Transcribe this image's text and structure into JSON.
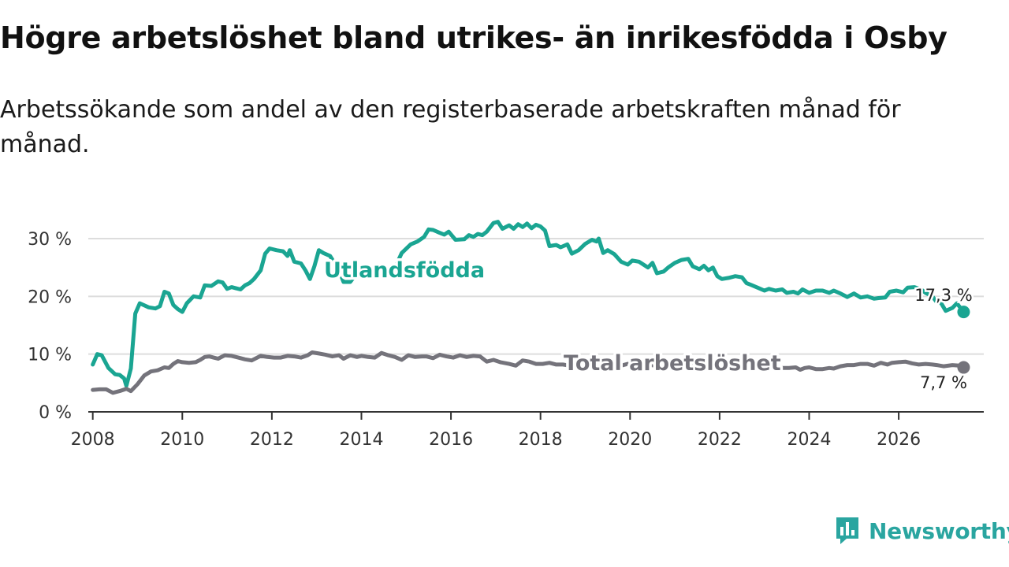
{
  "title": "Högre arbetslöshet bland utrikes- än inrikesfödda i Osby",
  "subtitle": "Arbetssökande som andel av den registerbaserade arbetskraften månad för månad.",
  "brand": "Newsworthy",
  "colors": {
    "foreign_born": "#1aa592",
    "total": "#74737b",
    "grid": "#dddddd",
    "axis": "#333333",
    "brand": "#2aa5a0"
  },
  "chart_data": {
    "type": "line",
    "title": "Högre arbetslöshet bland utrikes- än inrikesfödda i Osby",
    "xlabel": "",
    "ylabel": "",
    "xlim": [
      2007.9,
      2027.9
    ],
    "ylim": [
      0,
      30
    ],
    "x_ticks": [
      2008,
      2010,
      2012,
      2014,
      2016,
      2018,
      2020,
      2022,
      2024,
      2026
    ],
    "x_tick_labels": [
      "2008",
      "2010",
      "2012",
      "2014",
      "2016",
      "2018",
      "2020",
      "2022",
      "2024",
      "2026"
    ],
    "y_ticks": [
      0,
      10,
      20,
      30
    ],
    "y_tick_labels": [
      "0 %",
      "10 %",
      "20 %",
      "30 %"
    ],
    "grid": true,
    "series": [
      {
        "name": "Utlandsfödda",
        "label": "Utlandsfödda",
        "end_label": "17,3 %",
        "end_value": 17.3,
        "points": [
          [
            2008.0,
            8.2
          ],
          [
            2008.1,
            10.0
          ],
          [
            2008.2,
            9.8
          ],
          [
            2008.35,
            7.6
          ],
          [
            2008.5,
            6.5
          ],
          [
            2008.6,
            6.4
          ],
          [
            2008.7,
            5.8
          ],
          [
            2008.75,
            4.5
          ],
          [
            2008.85,
            7.5
          ],
          [
            2008.95,
            17.0
          ],
          [
            2009.05,
            18.8
          ],
          [
            2009.25,
            18.1
          ],
          [
            2009.4,
            17.9
          ],
          [
            2009.5,
            18.3
          ],
          [
            2009.6,
            20.8
          ],
          [
            2009.7,
            20.5
          ],
          [
            2009.8,
            18.5
          ],
          [
            2009.9,
            17.8
          ],
          [
            2010.0,
            17.3
          ],
          [
            2010.1,
            18.8
          ],
          [
            2010.25,
            20.0
          ],
          [
            2010.4,
            19.8
          ],
          [
            2010.5,
            21.9
          ],
          [
            2010.65,
            21.8
          ],
          [
            2010.8,
            22.6
          ],
          [
            2010.9,
            22.4
          ],
          [
            2011.0,
            21.3
          ],
          [
            2011.1,
            21.6
          ],
          [
            2011.2,
            21.4
          ],
          [
            2011.3,
            21.2
          ],
          [
            2011.4,
            21.9
          ],
          [
            2011.5,
            22.3
          ],
          [
            2011.6,
            23.0
          ],
          [
            2011.75,
            24.5
          ],
          [
            2011.85,
            27.4
          ],
          [
            2011.95,
            28.3
          ],
          [
            2012.1,
            28.0
          ],
          [
            2012.25,
            27.8
          ],
          [
            2012.35,
            27.0
          ],
          [
            2012.4,
            28.0
          ],
          [
            2012.5,
            26.0
          ],
          [
            2012.65,
            25.7
          ],
          [
            2012.75,
            24.5
          ],
          [
            2012.85,
            23.0
          ],
          [
            2012.95,
            25.2
          ],
          [
            2013.05,
            28.0
          ],
          [
            2013.15,
            27.5
          ],
          [
            2013.3,
            27.0
          ],
          [
            2013.5,
            24.5
          ],
          [
            2013.6,
            22.5
          ],
          [
            2013.75,
            22.5
          ],
          [
            2013.85,
            23.5
          ],
          [
            2014.05,
            24.3
          ],
          [
            2014.3,
            24.0
          ],
          [
            2014.5,
            24.5
          ],
          [
            2014.75,
            25.0
          ],
          [
            2014.9,
            27.5
          ],
          [
            2015.1,
            29.0
          ],
          [
            2015.25,
            29.5
          ],
          [
            2015.4,
            30.3
          ],
          [
            2015.5,
            31.6
          ],
          [
            2015.6,
            31.5
          ],
          [
            2015.75,
            31.0
          ],
          [
            2015.85,
            30.7
          ],
          [
            2015.95,
            31.2
          ],
          [
            2016.1,
            29.8
          ],
          [
            2016.3,
            29.9
          ],
          [
            2016.4,
            30.6
          ],
          [
            2016.5,
            30.3
          ],
          [
            2016.6,
            30.8
          ],
          [
            2016.7,
            30.6
          ],
          [
            2016.8,
            31.2
          ],
          [
            2016.95,
            32.7
          ],
          [
            2017.05,
            32.9
          ],
          [
            2017.15,
            31.7
          ],
          [
            2017.3,
            32.3
          ],
          [
            2017.4,
            31.7
          ],
          [
            2017.5,
            32.5
          ],
          [
            2017.6,
            32.0
          ],
          [
            2017.7,
            32.6
          ],
          [
            2017.8,
            31.8
          ],
          [
            2017.9,
            32.4
          ],
          [
            2018.0,
            32.1
          ],
          [
            2018.1,
            31.4
          ],
          [
            2018.2,
            28.7
          ],
          [
            2018.35,
            28.9
          ],
          [
            2018.45,
            28.5
          ],
          [
            2018.6,
            29.0
          ],
          [
            2018.7,
            27.4
          ],
          [
            2018.85,
            28.0
          ],
          [
            2019.0,
            29.1
          ],
          [
            2019.15,
            29.8
          ],
          [
            2019.25,
            29.5
          ],
          [
            2019.3,
            30.0
          ],
          [
            2019.4,
            27.5
          ],
          [
            2019.5,
            28.0
          ],
          [
            2019.65,
            27.3
          ],
          [
            2019.8,
            26.0
          ],
          [
            2019.95,
            25.5
          ],
          [
            2020.05,
            26.2
          ],
          [
            2020.2,
            26.0
          ],
          [
            2020.3,
            25.5
          ],
          [
            2020.4,
            25.0
          ],
          [
            2020.5,
            25.8
          ],
          [
            2020.6,
            24.0
          ],
          [
            2020.75,
            24.3
          ],
          [
            2020.85,
            25.0
          ],
          [
            2021.0,
            25.8
          ],
          [
            2021.15,
            26.3
          ],
          [
            2021.3,
            26.5
          ],
          [
            2021.4,
            25.2
          ],
          [
            2021.55,
            24.7
          ],
          [
            2021.65,
            25.3
          ],
          [
            2021.75,
            24.5
          ],
          [
            2021.85,
            25.0
          ],
          [
            2021.95,
            23.5
          ],
          [
            2022.05,
            23.0
          ],
          [
            2022.2,
            23.2
          ],
          [
            2022.35,
            23.5
          ],
          [
            2022.5,
            23.3
          ],
          [
            2022.6,
            22.3
          ],
          [
            2022.7,
            22.0
          ],
          [
            2022.85,
            21.5
          ],
          [
            2023.0,
            21.0
          ],
          [
            2023.1,
            21.3
          ],
          [
            2023.25,
            21.0
          ],
          [
            2023.4,
            21.2
          ],
          [
            2023.5,
            20.6
          ],
          [
            2023.65,
            20.8
          ],
          [
            2023.75,
            20.5
          ],
          [
            2023.85,
            21.2
          ],
          [
            2024.0,
            20.6
          ],
          [
            2024.15,
            21.0
          ],
          [
            2024.3,
            21.0
          ],
          [
            2024.45,
            20.6
          ],
          [
            2024.55,
            21.0
          ],
          [
            2024.7,
            20.5
          ],
          [
            2024.85,
            19.9
          ],
          [
            2025.0,
            20.5
          ],
          [
            2025.15,
            19.8
          ],
          [
            2025.3,
            20.0
          ],
          [
            2025.45,
            19.6
          ],
          [
            2025.55,
            19.7
          ],
          [
            2025.7,
            19.8
          ],
          [
            2025.8,
            20.8
          ],
          [
            2025.95,
            21.0
          ],
          [
            2026.1,
            20.7
          ],
          [
            2026.2,
            21.5
          ],
          [
            2026.35,
            21.6
          ],
          [
            2026.5,
            21.2
          ],
          [
            2026.6,
            20.6
          ],
          [
            2026.75,
            20.0
          ],
          [
            2026.85,
            19.0
          ],
          [
            2026.95,
            18.8
          ],
          [
            2027.05,
            17.5
          ],
          [
            2027.2,
            18.0
          ],
          [
            2027.3,
            18.8
          ],
          [
            2027.45,
            17.3
          ]
        ]
      },
      {
        "name": "Total arbetslöshet",
        "label": "Total arbetslöshet",
        "end_label": "7,7 %",
        "end_value": 7.7,
        "points": [
          [
            2008.0,
            3.8
          ],
          [
            2008.15,
            3.9
          ],
          [
            2008.3,
            3.9
          ],
          [
            2008.45,
            3.3
          ],
          [
            2008.6,
            3.6
          ],
          [
            2008.75,
            4.0
          ],
          [
            2008.85,
            3.6
          ],
          [
            2009.0,
            4.8
          ],
          [
            2009.15,
            6.3
          ],
          [
            2009.3,
            7.0
          ],
          [
            2009.45,
            7.2
          ],
          [
            2009.6,
            7.7
          ],
          [
            2009.7,
            7.6
          ],
          [
            2009.8,
            8.3
          ],
          [
            2009.9,
            8.8
          ],
          [
            2010.0,
            8.6
          ],
          [
            2010.15,
            8.5
          ],
          [
            2010.3,
            8.6
          ],
          [
            2010.4,
            9.0
          ],
          [
            2010.5,
            9.5
          ],
          [
            2010.6,
            9.6
          ],
          [
            2010.7,
            9.4
          ],
          [
            2010.8,
            9.2
          ],
          [
            2010.95,
            9.8
          ],
          [
            2011.1,
            9.7
          ],
          [
            2011.25,
            9.4
          ],
          [
            2011.4,
            9.1
          ],
          [
            2011.55,
            8.9
          ],
          [
            2011.75,
            9.7
          ],
          [
            2011.9,
            9.5
          ],
          [
            2012.05,
            9.4
          ],
          [
            2012.2,
            9.4
          ],
          [
            2012.35,
            9.7
          ],
          [
            2012.5,
            9.6
          ],
          [
            2012.65,
            9.4
          ],
          [
            2012.8,
            9.8
          ],
          [
            2012.9,
            10.3
          ],
          [
            2013.05,
            10.1
          ],
          [
            2013.2,
            9.9
          ],
          [
            2013.35,
            9.6
          ],
          [
            2013.5,
            9.8
          ],
          [
            2013.6,
            9.2
          ],
          [
            2013.75,
            9.8
          ],
          [
            2013.9,
            9.5
          ],
          [
            2014.0,
            9.7
          ],
          [
            2014.15,
            9.5
          ],
          [
            2014.3,
            9.4
          ],
          [
            2014.45,
            10.2
          ],
          [
            2014.6,
            9.8
          ],
          [
            2014.75,
            9.5
          ],
          [
            2014.9,
            9.0
          ],
          [
            2015.05,
            9.8
          ],
          [
            2015.2,
            9.5
          ],
          [
            2015.35,
            9.6
          ],
          [
            2015.45,
            9.6
          ],
          [
            2015.6,
            9.3
          ],
          [
            2015.75,
            9.9
          ],
          [
            2015.9,
            9.6
          ],
          [
            2016.05,
            9.4
          ],
          [
            2016.2,
            9.8
          ],
          [
            2016.35,
            9.5
          ],
          [
            2016.5,
            9.7
          ],
          [
            2016.65,
            9.6
          ],
          [
            2016.8,
            8.7
          ],
          [
            2016.95,
            9.0
          ],
          [
            2017.1,
            8.6
          ],
          [
            2017.3,
            8.3
          ],
          [
            2017.45,
            8.0
          ],
          [
            2017.6,
            8.9
          ],
          [
            2017.75,
            8.7
          ],
          [
            2017.9,
            8.3
          ],
          [
            2018.05,
            8.3
          ],
          [
            2018.2,
            8.5
          ],
          [
            2018.35,
            8.2
          ],
          [
            2018.5,
            8.2
          ],
          [
            2018.65,
            8.0
          ],
          [
            2018.8,
            7.9
          ],
          [
            2018.95,
            8.2
          ],
          [
            2019.1,
            8.0
          ],
          [
            2019.25,
            7.7
          ],
          [
            2019.35,
            7.5
          ],
          [
            2019.5,
            7.9
          ],
          [
            2019.65,
            7.8
          ],
          [
            2019.8,
            8.0
          ],
          [
            2019.95,
            8.3
          ],
          [
            2020.1,
            8.5
          ],
          [
            2020.25,
            8.6
          ],
          [
            2020.4,
            8.2
          ],
          [
            2020.55,
            8.0
          ],
          [
            2020.7,
            8.3
          ],
          [
            2020.8,
            8.0
          ],
          [
            2020.95,
            8.0
          ],
          [
            2021.1,
            8.2
          ],
          [
            2021.25,
            8.5
          ],
          [
            2021.35,
            8.5
          ],
          [
            2021.5,
            8.3
          ],
          [
            2021.65,
            8.1
          ],
          [
            2021.8,
            8.0
          ],
          [
            2021.9,
            7.8
          ],
          [
            2022.05,
            8.0
          ],
          [
            2022.2,
            7.8
          ],
          [
            2022.3,
            7.8
          ],
          [
            2022.45,
            7.9
          ],
          [
            2022.6,
            7.8
          ],
          [
            2022.75,
            7.6
          ],
          [
            2022.85,
            7.7
          ],
          [
            2023.0,
            7.6
          ],
          [
            2023.1,
            7.8
          ],
          [
            2023.25,
            7.7
          ],
          [
            2023.4,
            7.6
          ],
          [
            2023.55,
            7.6
          ],
          [
            2023.7,
            7.7
          ],
          [
            2023.8,
            7.3
          ],
          [
            2023.9,
            7.6
          ],
          [
            2024.0,
            7.7
          ],
          [
            2024.15,
            7.4
          ],
          [
            2024.3,
            7.4
          ],
          [
            2024.45,
            7.6
          ],
          [
            2024.55,
            7.5
          ],
          [
            2024.7,
            7.9
          ],
          [
            2024.85,
            8.1
          ],
          [
            2025.0,
            8.1
          ],
          [
            2025.15,
            8.3
          ],
          [
            2025.3,
            8.3
          ],
          [
            2025.45,
            8.0
          ],
          [
            2025.6,
            8.5
          ],
          [
            2025.75,
            8.2
          ],
          [
            2025.85,
            8.5
          ],
          [
            2026.0,
            8.6
          ],
          [
            2026.15,
            8.7
          ],
          [
            2026.3,
            8.4
          ],
          [
            2026.45,
            8.2
          ],
          [
            2026.6,
            8.3
          ],
          [
            2026.75,
            8.2
          ],
          [
            2026.85,
            8.1
          ],
          [
            2027.0,
            7.9
          ],
          [
            2027.2,
            8.1
          ],
          [
            2027.35,
            8.0
          ],
          [
            2027.45,
            7.7
          ]
        ]
      }
    ]
  }
}
